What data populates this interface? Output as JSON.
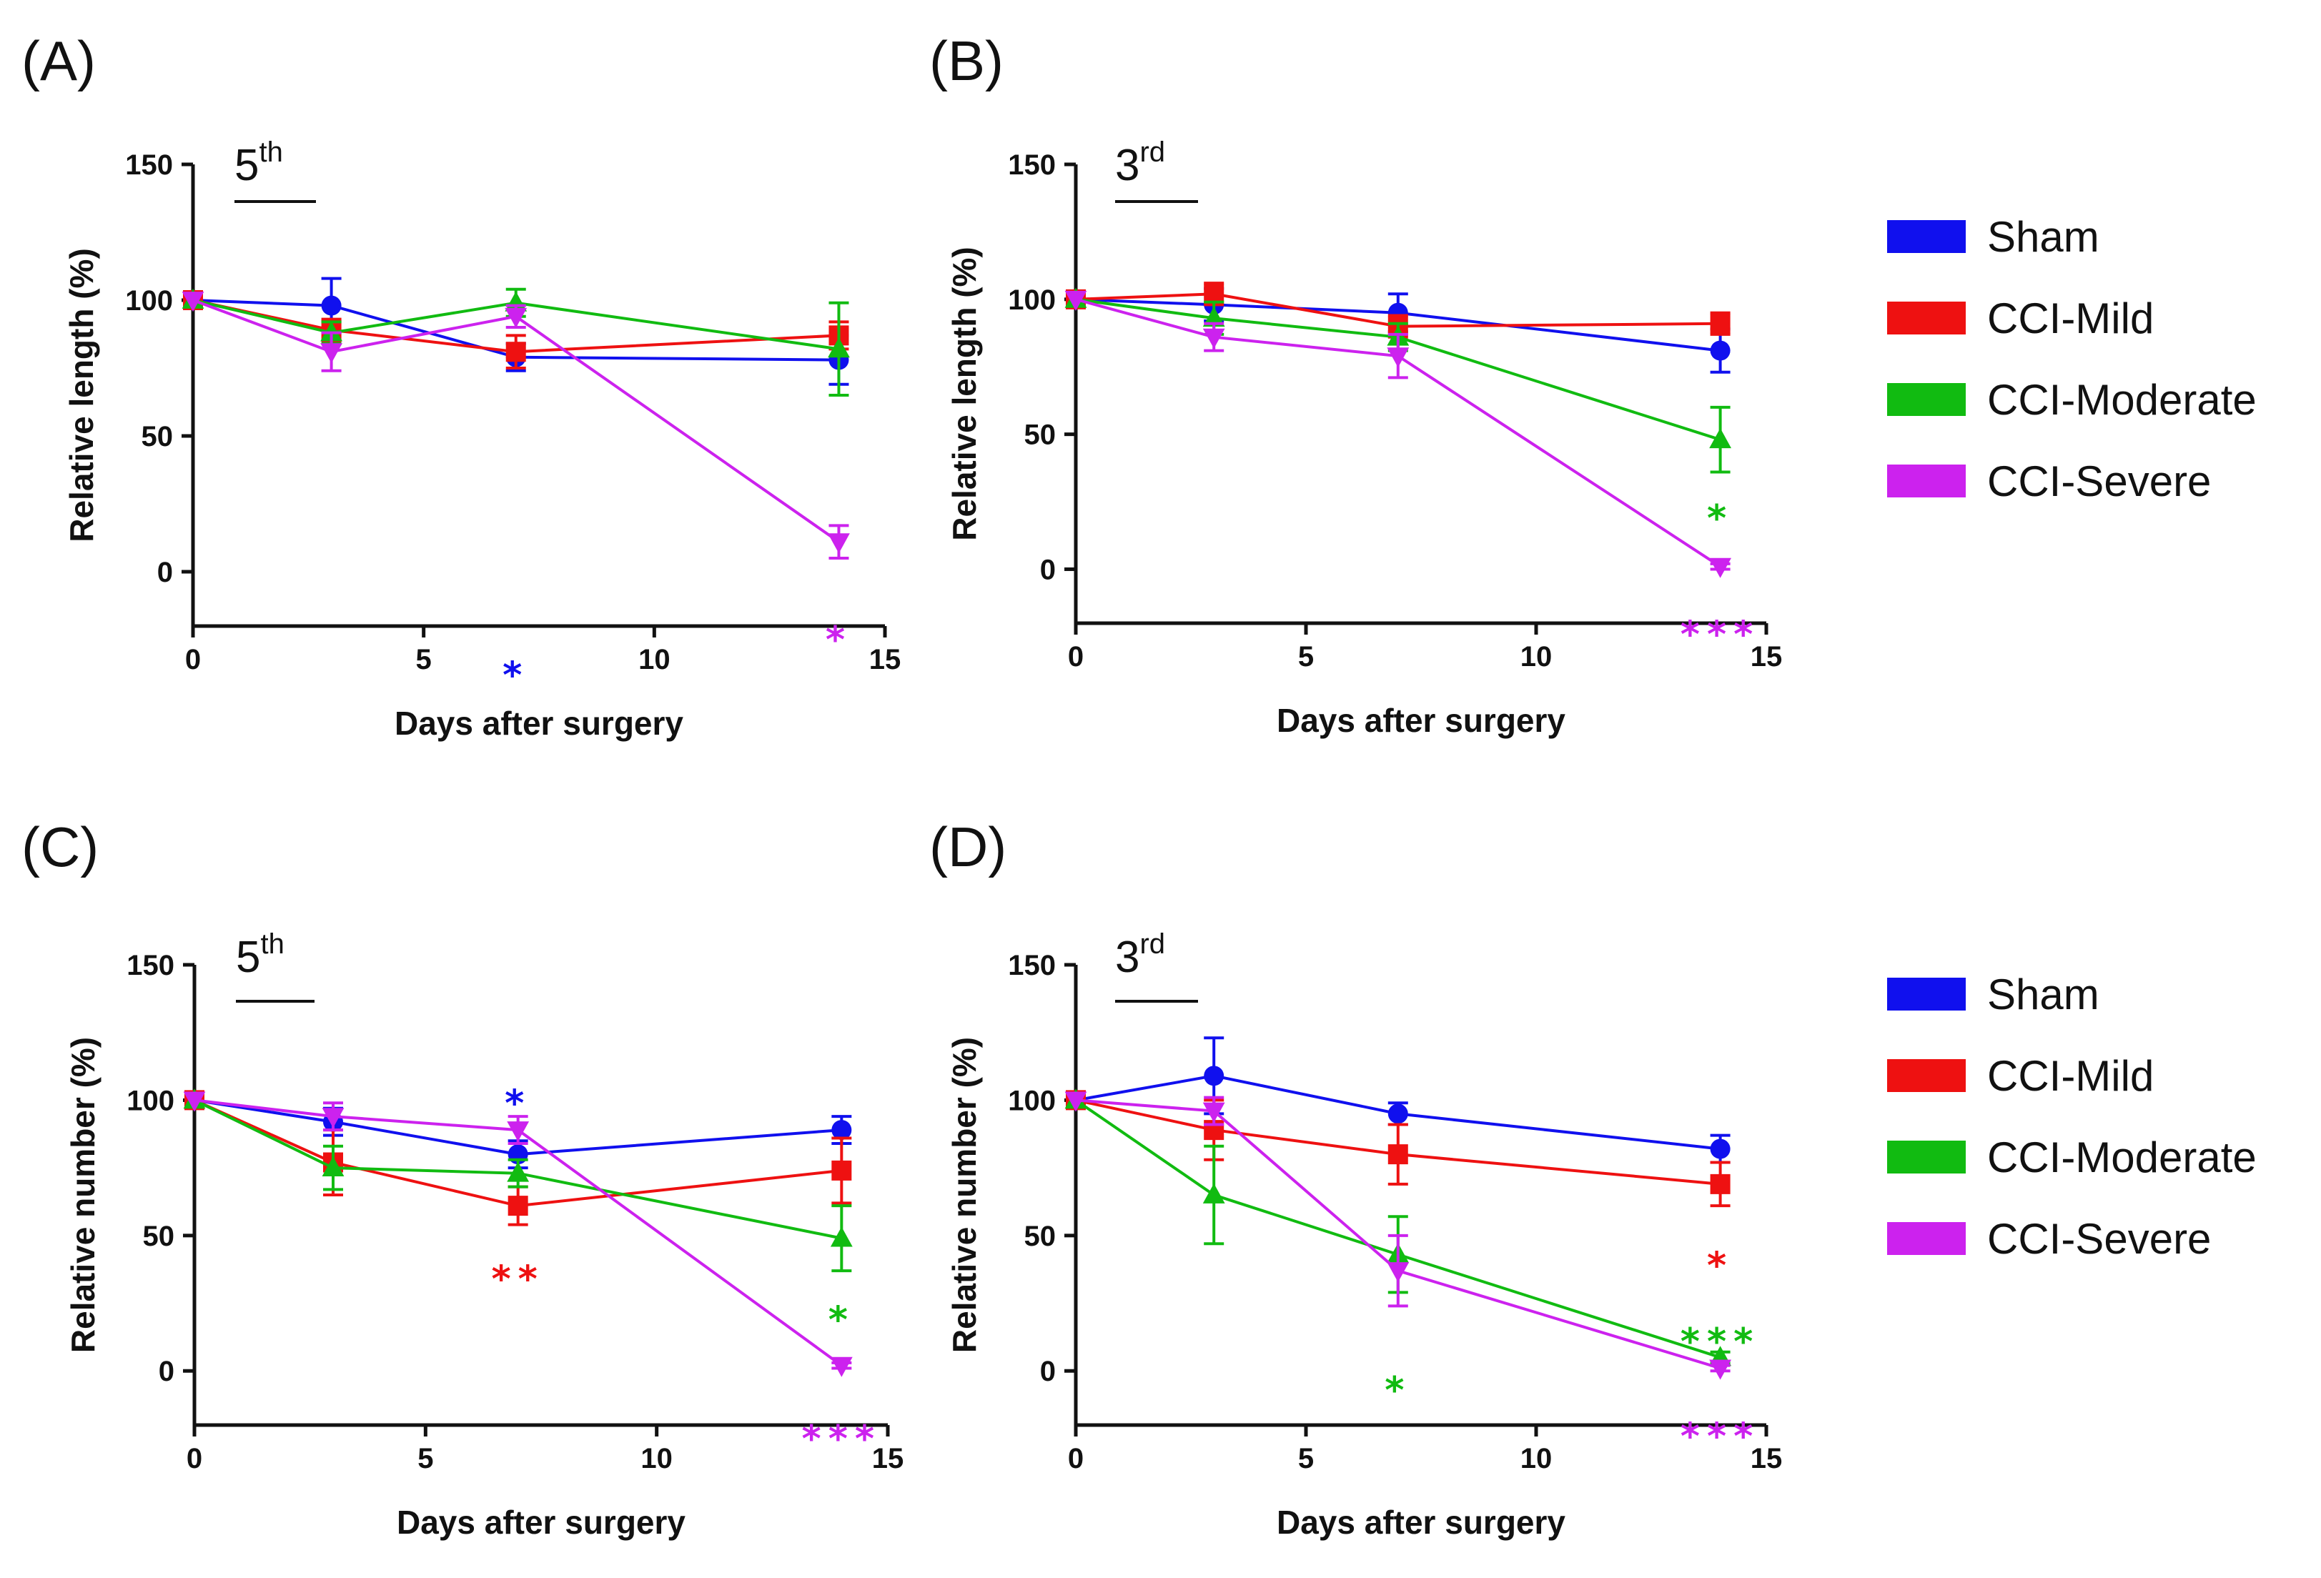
{
  "figure": {
    "legend_order": [
      "Sham",
      "CCI-Mild",
      "CCI-Moderate",
      "CCI-Severe"
    ]
  },
  "series_styles": {
    "Sham": {
      "color": "#1010ee",
      "marker": "circle"
    },
    "CCI-Mild": {
      "color": "#ee1111",
      "marker": "square"
    },
    "CCI-Moderate": {
      "color": "#11bb11",
      "marker": "triangle-up"
    },
    "CCI-Severe": {
      "color": "#cc22ee",
      "marker": "triangle-down"
    }
  },
  "chart_data": [
    {
      "panel": "(A)",
      "type": "line",
      "inset_main": "5",
      "inset_sup": "th",
      "xlabel": "Days after surgery",
      "ylabel": "Relative length (%)",
      "xlim": [
        0,
        15
      ],
      "ylim": [
        -20,
        150
      ],
      "xticks": [
        "0",
        "5",
        "10",
        "15"
      ],
      "yticks": [
        "0",
        "50",
        "100",
        "150"
      ],
      "x": [
        0,
        3,
        7,
        14
      ],
      "series": [
        {
          "name": "Sham",
          "values": [
            100,
            98,
            79,
            78
          ],
          "errors": [
            0,
            10,
            5,
            9
          ]
        },
        {
          "name": "CCI-Mild",
          "values": [
            100,
            89,
            81,
            87
          ],
          "errors": [
            0,
            4,
            6,
            5
          ]
        },
        {
          "name": "CCI-Moderate",
          "values": [
            100,
            88,
            99,
            82
          ],
          "errors": [
            0,
            4,
            5,
            17
          ]
        },
        {
          "name": "CCI-Severe",
          "values": [
            100,
            81,
            94,
            11
          ],
          "errors": [
            0,
            7,
            4,
            6
          ]
        }
      ],
      "annotations": [
        {
          "series": "Sham",
          "x": 7,
          "y": -37,
          "text": "*"
        },
        {
          "series": "CCI-Severe",
          "x": 14,
          "y": -24,
          "text": "*"
        }
      ]
    },
    {
      "panel": "(B)",
      "type": "line",
      "inset_main": "3",
      "inset_sup": "rd",
      "xlabel": "Days after surgery",
      "ylabel": "Relative length (%)",
      "xlim": [
        0,
        15
      ],
      "ylim": [
        -20,
        150
      ],
      "xticks": [
        "0",
        "5",
        "10",
        "15"
      ],
      "yticks": [
        "0",
        "50",
        "100",
        "150"
      ],
      "x": [
        0,
        3,
        7,
        14
      ],
      "series": [
        {
          "name": "Sham",
          "values": [
            100,
            98,
            95,
            81
          ],
          "errors": [
            0,
            6,
            7,
            8
          ]
        },
        {
          "name": "CCI-Mild",
          "values": [
            100,
            102,
            90,
            91
          ],
          "errors": [
            0,
            4,
            4,
            4
          ]
        },
        {
          "name": "CCI-Moderate",
          "values": [
            100,
            93,
            86,
            48
          ],
          "errors": [
            0,
            6,
            5,
            12
          ]
        },
        {
          "name": "CCI-Severe",
          "values": [
            100,
            86,
            79,
            1
          ],
          "errors": [
            0,
            5,
            8,
            1
          ]
        }
      ],
      "annotations": [
        {
          "series": "CCI-Moderate",
          "x": 14,
          "y": 20,
          "text": "*"
        },
        {
          "series": "CCI-Severe",
          "x": 14,
          "y": -23,
          "text": "***"
        }
      ]
    },
    {
      "panel": "(C)",
      "type": "line",
      "inset_main": "5",
      "inset_sup": "th",
      "xlabel": "Days after surgery",
      "ylabel": "Relative number (%)",
      "xlim": [
        0,
        15
      ],
      "ylim": [
        -20,
        150
      ],
      "xticks": [
        "0",
        "5",
        "10",
        "15"
      ],
      "yticks": [
        "0",
        "50",
        "100",
        "150"
      ],
      "x": [
        0,
        3,
        7,
        14
      ],
      "series": [
        {
          "name": "Sham",
          "values": [
            100,
            92,
            80,
            89
          ],
          "errors": [
            0,
            5,
            5,
            5
          ]
        },
        {
          "name": "CCI-Mild",
          "values": [
            100,
            77,
            61,
            74
          ],
          "errors": [
            0,
            12,
            7,
            12
          ]
        },
        {
          "name": "CCI-Moderate",
          "values": [
            100,
            75,
            73,
            49
          ],
          "errors": [
            0,
            8,
            5,
            12
          ]
        },
        {
          "name": "CCI-Severe",
          "values": [
            100,
            94,
            89,
            2
          ],
          "errors": [
            0,
            5,
            5,
            1
          ]
        }
      ],
      "annotations": [
        {
          "series": "Sham",
          "x": 7,
          "y": 100,
          "text": "*"
        },
        {
          "series": "CCI-Mild",
          "x": 7,
          "y": 35,
          "text": "**"
        },
        {
          "series": "CCI-Moderate",
          "x": 14,
          "y": 20,
          "text": "*"
        },
        {
          "series": "CCI-Severe",
          "x": 14,
          "y": -24,
          "text": "***"
        }
      ]
    },
    {
      "panel": "(D)",
      "type": "line",
      "inset_main": "3",
      "inset_sup": "rd",
      "xlabel": "Days after surgery",
      "ylabel": "Relative number (%)",
      "xlim": [
        0,
        15
      ],
      "ylim": [
        -20,
        150
      ],
      "xticks": [
        "0",
        "5",
        "10",
        "15"
      ],
      "yticks": [
        "0",
        "50",
        "100",
        "150"
      ],
      "x": [
        0,
        3,
        7,
        14
      ],
      "series": [
        {
          "name": "Sham",
          "values": [
            100,
            109,
            95,
            82
          ],
          "errors": [
            0,
            14,
            4,
            5
          ]
        },
        {
          "name": "CCI-Mild",
          "values": [
            100,
            89,
            80,
            69
          ],
          "errors": [
            0,
            11,
            11,
            8
          ]
        },
        {
          "name": "CCI-Moderate",
          "values": [
            100,
            65,
            43,
            5
          ],
          "errors": [
            0,
            18,
            14,
            2
          ]
        },
        {
          "name": "CCI-Severe",
          "values": [
            100,
            96,
            37,
            1
          ],
          "errors": [
            0,
            5,
            13,
            1
          ]
        }
      ],
      "annotations": [
        {
          "series": "CCI-Mild",
          "x": 14,
          "y": 40,
          "text": "*"
        },
        {
          "series": "CCI-Moderate",
          "x": 7,
          "y": -6,
          "text": "*"
        },
        {
          "series": "CCI-Moderate",
          "x": 14,
          "y": 12,
          "text": "***"
        },
        {
          "series": "CCI-Severe",
          "x": 14,
          "y": -23,
          "text": "***"
        }
      ]
    }
  ]
}
